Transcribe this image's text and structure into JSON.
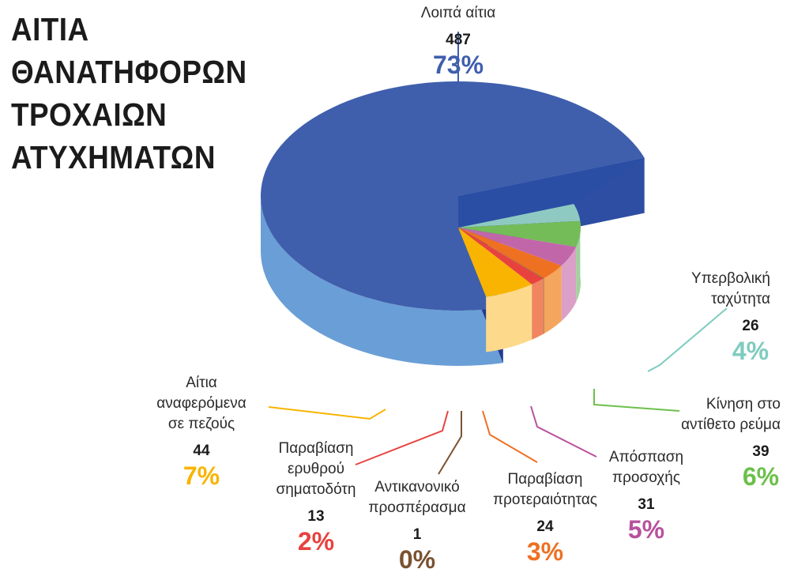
{
  "title_lines": [
    "ΑΙΤΙΑ",
    "ΘΑΝΑΤΗΦΟΡΩΝ",
    "ΤΡΟΧΑΙΩΝ",
    "ΑΤΥΧΗΜΑΤΩΝ"
  ],
  "chart_data": {
    "type": "pie",
    "title": "ΑΙΤΙΑ ΘΑΝΑΤΗΦΟΡΩΝ ΤΡΟΧΑΙΩΝ ΑΤΥΧΗΜΑΤΩΝ",
    "slices": [
      {
        "label": "Λοιπά αίτια",
        "value": 487,
        "percent": "73%",
        "top": "#3f5fad",
        "side": "#6a9ed6",
        "inner": "#243a8f",
        "textcolor": "#3f5fad"
      },
      {
        "label": "Υπερβολική ταχύτητα",
        "value": 26,
        "percent": "4%",
        "top": "#8fcac2",
        "side": "#b4e0db",
        "inner": "#3aa08e",
        "textcolor": "#7fcbbf"
      },
      {
        "label": "Κίνηση στο αντίθετο ρεύμα",
        "value": 39,
        "percent": "6%",
        "top": "#74bc58",
        "side": "#a1d29c",
        "inner": "#1f9b5c",
        "textcolor": "#6cc04a"
      },
      {
        "label": "Απόσπαση προσοχής",
        "value": 31,
        "percent": "5%",
        "top": "#c167a9",
        "side": "#dba0c8",
        "inner": "#9d4a8a",
        "textcolor": "#b8519e"
      },
      {
        "label": "Παραβίαση προτεραιότητας",
        "value": 24,
        "percent": "3%",
        "top": "#ee7021",
        "side": "#f4a55e",
        "inner": "#c95a17",
        "textcolor": "#ee7021"
      },
      {
        "label": "Αντικανονικό προσπέρασμα",
        "value": 1,
        "percent": "0%",
        "top": "#8a5a2b",
        "side": "#a0703e",
        "inner": "#6d4720",
        "textcolor": "#7a5230"
      },
      {
        "label": "Παραβίαση ερυθρού σηματοδότη",
        "value": 13,
        "percent": "2%",
        "top": "#e8423f",
        "side": "#f08560",
        "inner": "#c9302e",
        "textcolor": "#e8423f"
      },
      {
        "label": "Αίτια αναφερόμενα σε πεζούς",
        "value": 44,
        "percent": "7%",
        "top": "#f8b400",
        "side": "#fcd98b",
        "inner": "#d79a00",
        "textcolor": "#f8b400"
      }
    ]
  }
}
